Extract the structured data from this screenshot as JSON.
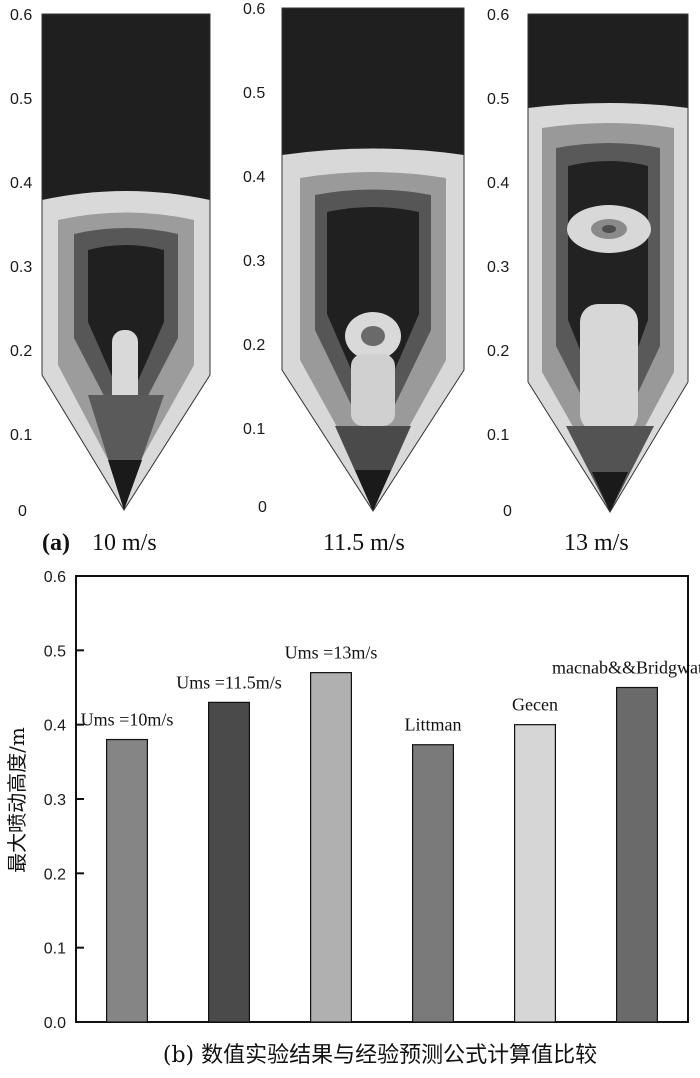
{
  "panel_a": {
    "label": "(a)",
    "subplots": [
      {
        "caption": "10 m/s"
      },
      {
        "caption": "11.5 m/s"
      },
      {
        "caption": "13 m/s"
      }
    ],
    "y_ticks": [
      "0.6",
      "0.5",
      "0.4",
      "0.3",
      "0.2",
      "0.1",
      "0"
    ]
  },
  "chart_data": {
    "type": "bar",
    "categories": [
      "Ums =10m/s",
      "Ums =11.5m/s",
      "Ums =13m/s",
      "Littman",
      "Gecen",
      "macnab&&Bridgwateri"
    ],
    "values": [
      0.38,
      0.43,
      0.47,
      0.373,
      0.4,
      0.45
    ],
    "ylim": [
      0.0,
      0.6
    ],
    "y_ticks": [
      "0.0",
      "0.1",
      "0.2",
      "0.3",
      "0.4",
      "0.5",
      "0.6"
    ],
    "ylabel": "最大喷动高度/m",
    "caption": "(b) 数值实验结果与经验预测公式计算值比较",
    "bar_colors": [
      "#858585",
      "#4a4a4a",
      "#b0b0b0",
      "#7a7a7a",
      "#d6d6d6",
      "#6a6a6a"
    ],
    "grid": false,
    "legend": "none"
  }
}
